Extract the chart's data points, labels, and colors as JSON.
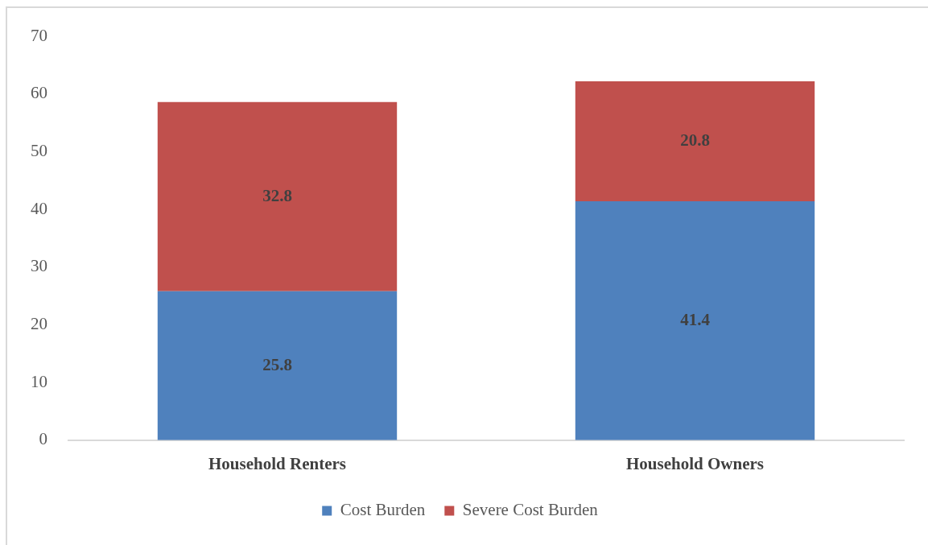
{
  "chart_data": {
    "type": "bar",
    "categories": [
      "Household Renters",
      "Household Owners"
    ],
    "series": [
      {
        "name": "Cost Burden",
        "color": "#4f81bd",
        "values": [
          25.8,
          41.4
        ]
      },
      {
        "name": "Severe Cost Burden",
        "color": "#c0504d",
        "values": [
          32.8,
          20.8
        ]
      }
    ],
    "stacked": true,
    "ylim": [
      0,
      70
    ],
    "yticks": [
      0,
      10,
      20,
      30,
      40,
      50,
      60,
      70
    ],
    "legend": "bottom",
    "data_labels": true
  }
}
